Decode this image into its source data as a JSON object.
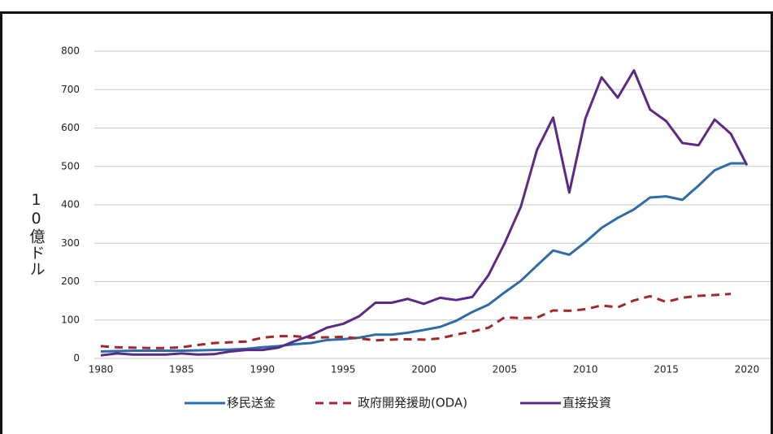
{
  "chart_data": {
    "type": "line",
    "y_label": "10億ドル",
    "x": [
      1980,
      1981,
      1982,
      1983,
      1984,
      1985,
      1986,
      1987,
      1988,
      1989,
      1990,
      1991,
      1992,
      1993,
      1994,
      1995,
      1996,
      1997,
      1998,
      1999,
      2000,
      2001,
      2002,
      2003,
      2004,
      2005,
      2006,
      2007,
      2008,
      2009,
      2010,
      2011,
      2012,
      2013,
      2014,
      2015,
      2016,
      2017,
      2018,
      2019,
      2020
    ],
    "series": [
      {
        "name": "移民送金",
        "color": "#2e6ca8",
        "dash": false,
        "values": [
          18,
          19,
          20,
          20,
          20,
          20,
          21,
          22,
          23,
          25,
          29,
          32,
          37,
          40,
          48,
          50,
          54,
          62,
          62,
          67,
          74,
          82,
          98,
          121,
          140,
          172,
          202,
          242,
          281,
          270,
          303,
          340,
          366,
          388,
          419,
          422,
          413,
          450,
          490,
          508,
          508
        ]
      },
      {
        "name": "政府開発援助(ODA)",
        "color": "#a0282d",
        "dash": true,
        "values": [
          32,
          29,
          28,
          27,
          27,
          29,
          35,
          40,
          42,
          44,
          54,
          58,
          58,
          54,
          55,
          56,
          52,
          47,
          49,
          50,
          49,
          52,
          62,
          70,
          80,
          107,
          105,
          106,
          125,
          124,
          128,
          138,
          133,
          151,
          162,
          147,
          158,
          163,
          165,
          168,
          null
        ]
      },
      {
        "name": "直接投資",
        "color": "#5a2a84",
        "dash": false,
        "values": [
          8,
          13,
          10,
          10,
          10,
          13,
          10,
          11,
          18,
          22,
          22,
          28,
          45,
          60,
          80,
          90,
          110,
          145,
          145,
          155,
          142,
          158,
          152,
          160,
          217,
          300,
          395,
          543,
          627,
          432,
          625,
          732,
          679,
          750,
          648,
          618,
          561,
          555,
          622,
          585,
          503
        ]
      }
    ],
    "xlim": [
      1980,
      2020
    ],
    "xticks": [
      1980,
      1985,
      1990,
      1995,
      2000,
      2005,
      2010,
      2015,
      2020
    ],
    "ylim": [
      0,
      800
    ],
    "yticks": [
      0,
      100,
      200,
      300,
      400,
      500,
      600,
      700,
      800
    ],
    "grid": true,
    "legend": "bottom"
  }
}
